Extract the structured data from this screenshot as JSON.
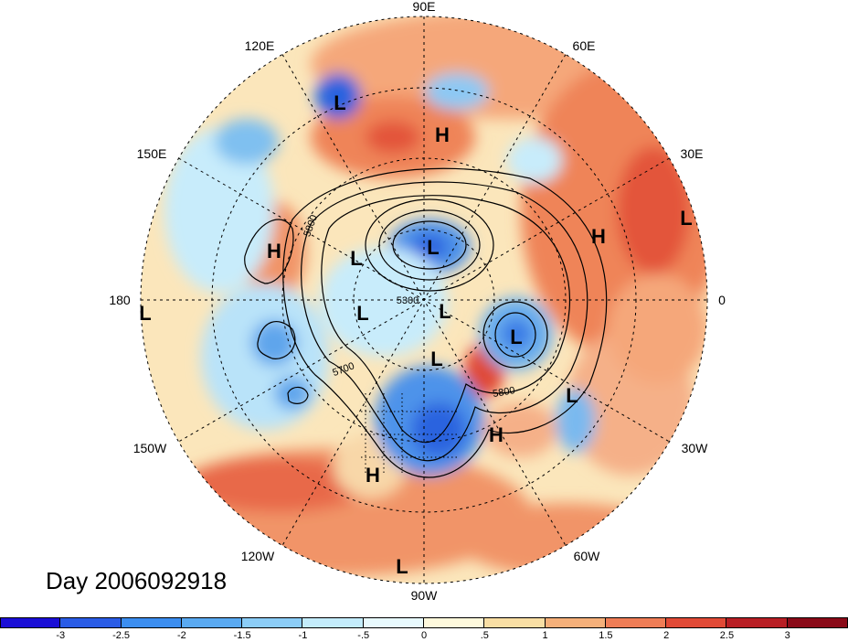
{
  "title": "Day 2006092918",
  "lon_labels": [
    "90E",
    "60E",
    "120E",
    "30E",
    "150E",
    "0",
    "180",
    "30W",
    "150W",
    "60W",
    "120W",
    "90W"
  ],
  "pressure_labels": [
    "H",
    "L",
    "L",
    "H",
    "H",
    "L",
    "L",
    "L",
    "L",
    "L",
    "L",
    "L",
    "L",
    "H",
    "H",
    "L",
    "L"
  ],
  "contour_labels": [
    "5800",
    "5300",
    "5700",
    "5800"
  ],
  "colorbar": {
    "ticks": [
      "-3",
      "-2.5",
      "-2",
      "-1.5",
      "-1",
      "-.5",
      "0",
      ".5",
      "1",
      "1.5",
      "2",
      "2.5",
      "3"
    ],
    "colors": [
      "#1a0fd6",
      "#2a5ce6",
      "#3c8ef0",
      "#5aaaf2",
      "#8ccdf7",
      "#c4ecfb",
      "#e8f9fd",
      "#fdf8dc",
      "#f8dea4",
      "#f5b07a",
      "#ef7d56",
      "#e14a36",
      "#b81e24",
      "#8a0a18"
    ]
  }
}
